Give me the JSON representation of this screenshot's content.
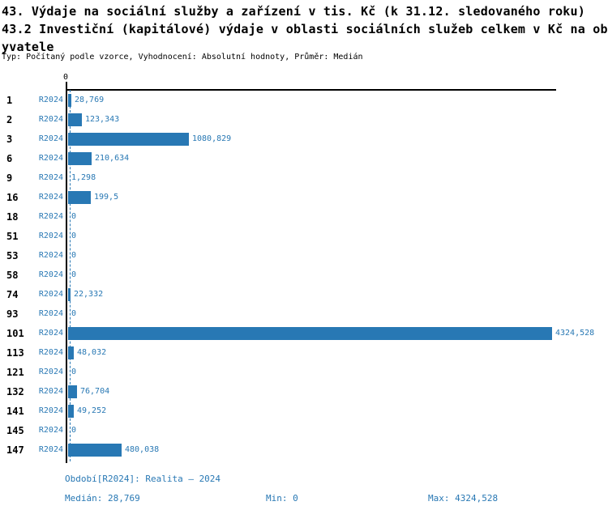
{
  "header": {
    "title_lines": [
      "43. Výdaje na sociální služby a zařízení v tis. Kč (k 31.12. sledovaného roku)",
      "43.2 Investiční (kapitálové) výdaje v oblasti sociálních služeb celkem v Kč na ob",
      "yvatele"
    ],
    "subtitle": "Typ: Počítaný podle vzorce, Vyhodnocení: Absolutní hodnoty, Průměr: Medián"
  },
  "chart_data": {
    "type": "bar",
    "orientation": "horizontal",
    "series_name": "R2024",
    "bar_color": "#2878b4",
    "x_axis": {
      "tick_label": "0",
      "min": 0,
      "max": 4324.528
    },
    "median_value": 28.769,
    "legend": "none",
    "rows": [
      {
        "category": "1",
        "series": "R2024",
        "value": 28.769,
        "label": "28,769"
      },
      {
        "category": "2",
        "series": "R2024",
        "value": 123.343,
        "label": "123,343"
      },
      {
        "category": "3",
        "series": "R2024",
        "value": 1080.829,
        "label": "1080,829"
      },
      {
        "category": "6",
        "series": "R2024",
        "value": 210.634,
        "label": "210,634"
      },
      {
        "category": "9",
        "series": "R2024",
        "value": 1.298,
        "label": "1,298"
      },
      {
        "category": "16",
        "series": "R2024",
        "value": 199.5,
        "label": "199,5"
      },
      {
        "category": "18",
        "series": "R2024",
        "value": 0,
        "label": "0"
      },
      {
        "category": "51",
        "series": "R2024",
        "value": 0,
        "label": "0"
      },
      {
        "category": "53",
        "series": "R2024",
        "value": 0,
        "label": "0"
      },
      {
        "category": "58",
        "series": "R2024",
        "value": 0,
        "label": "0"
      },
      {
        "category": "74",
        "series": "R2024",
        "value": 22.332,
        "label": "22,332"
      },
      {
        "category": "93",
        "series": "R2024",
        "value": 0,
        "label": "0"
      },
      {
        "category": "101",
        "series": "R2024",
        "value": 4324.528,
        "label": "4324,528"
      },
      {
        "category": "113",
        "series": "R2024",
        "value": 48.032,
        "label": "48,032"
      },
      {
        "category": "121",
        "series": "R2024",
        "value": 0,
        "label": "0"
      },
      {
        "category": "132",
        "series": "R2024",
        "value": 76.704,
        "label": "76,704"
      },
      {
        "category": "141",
        "series": "R2024",
        "value": 49.252,
        "label": "49,252"
      },
      {
        "category": "145",
        "series": "R2024",
        "value": 0,
        "label": "0"
      },
      {
        "category": "147",
        "series": "R2024",
        "value": 480.038,
        "label": "480,038"
      }
    ]
  },
  "footer": {
    "period": "Období[R2024]: Realita – 2024",
    "median": "Medián: 28,769",
    "min": "Min: 0",
    "max": "Max: 4324,528"
  }
}
